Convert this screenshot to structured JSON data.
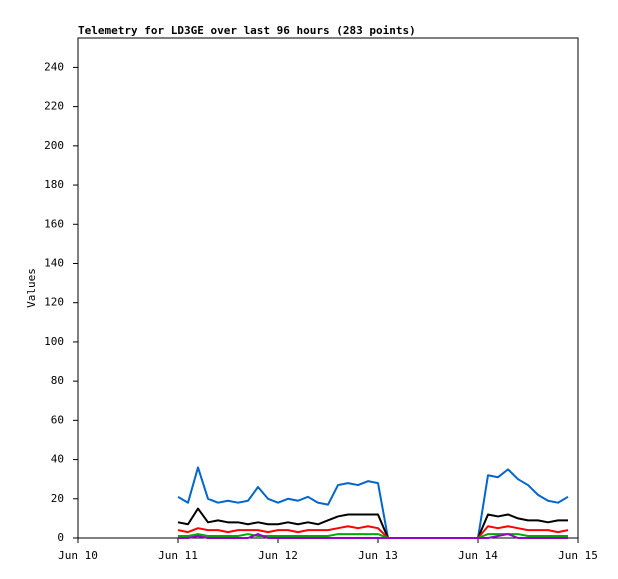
{
  "chart_data": {
    "type": "line",
    "title": "Telemetry for LD3GE over last 96 hours (283 points)",
    "y_label": "Values",
    "xlim": [
      10,
      15
    ],
    "xticks": [
      {
        "value": 10,
        "label": "Jun 10"
      },
      {
        "value": 11,
        "label": "Jun 11"
      },
      {
        "value": 12,
        "label": "Jun 12"
      },
      {
        "value": 13,
        "label": "Jun 13"
      },
      {
        "value": 14,
        "label": "Jun 14"
      },
      {
        "value": 15,
        "label": "Jun 15"
      }
    ],
    "ylim": [
      0,
      255
    ],
    "yticks": [
      0,
      20,
      40,
      60,
      80,
      100,
      120,
      140,
      160,
      180,
      200,
      220,
      240
    ],
    "grid": false,
    "x": [
      11.0,
      11.1,
      11.2,
      11.3,
      11.4,
      11.5,
      11.6,
      11.7,
      11.8,
      11.9,
      12.0,
      12.1,
      12.2,
      12.3,
      12.4,
      12.5,
      12.6,
      12.7,
      12.8,
      12.9,
      13.0,
      13.1,
      13.2,
      13.3,
      13.4,
      13.5,
      13.6,
      13.7,
      13.8,
      13.9,
      14.0,
      14.1,
      14.2,
      14.3,
      14.4,
      14.5,
      14.6,
      14.7,
      14.8,
      14.9
    ],
    "series": [
      {
        "color": "#0066cc",
        "values": [
          21,
          18,
          36,
          20,
          18,
          19,
          18,
          19,
          26,
          20,
          18,
          20,
          19,
          21,
          18,
          17,
          27,
          28,
          27,
          29,
          28,
          0,
          0,
          0,
          0,
          0,
          0,
          0,
          0,
          0,
          0,
          32,
          31,
          35,
          30,
          27,
          22,
          19,
          18,
          21
        ]
      },
      {
        "color": "#000000",
        "values": [
          8,
          7,
          15,
          8,
          9,
          8,
          8,
          7,
          8,
          7,
          7,
          8,
          7,
          8,
          7,
          9,
          11,
          12,
          12,
          12,
          12,
          0,
          0,
          0,
          0,
          0,
          0,
          0,
          0,
          0,
          0,
          12,
          11,
          12,
          10,
          9,
          9,
          8,
          9,
          9
        ]
      },
      {
        "color": "#ff0000",
        "values": [
          4,
          3,
          5,
          4,
          4,
          3,
          4,
          4,
          4,
          3,
          4,
          4,
          3,
          4,
          4,
          4,
          5,
          6,
          5,
          6,
          5,
          0,
          0,
          0,
          0,
          0,
          0,
          0,
          0,
          0,
          0,
          6,
          5,
          6,
          5,
          4,
          4,
          4,
          3,
          4
        ]
      },
      {
        "color": "#00aa00",
        "values": [
          1,
          1,
          2,
          1,
          1,
          1,
          1,
          2,
          1,
          1,
          1,
          1,
          1,
          1,
          1,
          1,
          2,
          2,
          2,
          2,
          2,
          0,
          0,
          0,
          0,
          0,
          0,
          0,
          0,
          0,
          0,
          2,
          2,
          2,
          2,
          1,
          1,
          1,
          1,
          1
        ]
      },
      {
        "color": "#9900cc",
        "values": [
          0,
          0,
          1,
          0,
          0,
          0,
          0,
          0,
          2,
          0,
          0,
          0,
          0,
          0,
          0,
          0,
          0,
          0,
          0,
          0,
          0,
          0,
          0,
          0,
          0,
          0,
          0,
          0,
          0,
          0,
          0,
          0,
          1,
          2,
          0,
          0,
          0,
          0,
          0,
          0
        ]
      }
    ]
  }
}
